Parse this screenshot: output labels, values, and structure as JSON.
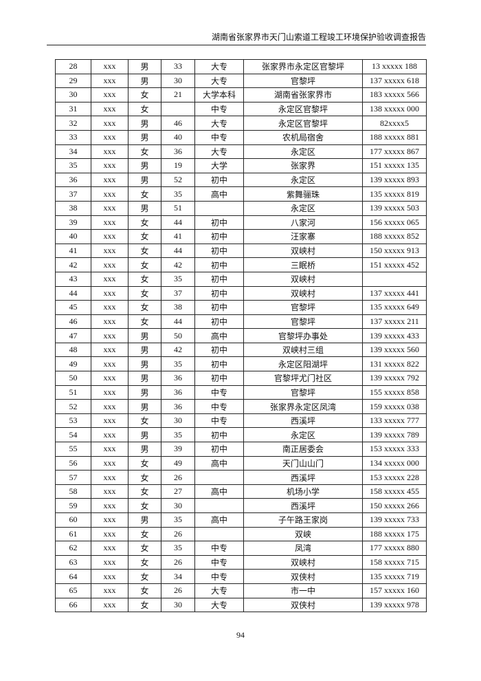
{
  "header": {
    "title": "湖南省张家界市天门山索道工程竣工环境保护验收调查报告"
  },
  "table": {
    "rows": [
      [
        "28",
        "xxx",
        "男",
        "33",
        "大专",
        "张家界市永定区官黎坪",
        "13 xxxxx 188"
      ],
      [
        "29",
        "xxx",
        "男",
        "30",
        "大专",
        "官黎坪",
        "137 xxxxx 618"
      ],
      [
        "30",
        "xxx",
        "女",
        "21",
        "大学本科",
        "湖南省张家界市",
        "183 xxxxx 566"
      ],
      [
        "31",
        "xxx",
        "女",
        null,
        "中专",
        "永定区官黎坪",
        "138 xxxxx 000"
      ],
      [
        "32",
        "xxx",
        "男",
        "46",
        "大专",
        "永定区官黎坪",
        "82xxxx5"
      ],
      [
        "33",
        "xxx",
        "男",
        "40",
        "中专",
        "农机局宿舍",
        "188 xxxxx 881"
      ],
      [
        "34",
        "xxx",
        "女",
        "36",
        "大专",
        "永定区",
        "177 xxxxx 867"
      ],
      [
        "35",
        "xxx",
        "男",
        "19",
        "大学",
        "张家界",
        "151 xxxxx 135"
      ],
      [
        "36",
        "xxx",
        "男",
        "52",
        "初中",
        "永定区",
        "139 xxxxx 893"
      ],
      [
        "37",
        "xxx",
        "女",
        "35",
        "高中",
        "紫舞骊珠",
        "135 xxxxx 819"
      ],
      [
        "38",
        "xxx",
        "男",
        "51",
        null,
        "永定区",
        "139 xxxxx 503"
      ],
      [
        "39",
        "xxx",
        "女",
        "44",
        "初中",
        "八家河",
        "156 xxxxx 065"
      ],
      [
        "40",
        "xxx",
        "女",
        "41",
        "初中",
        "汪家寨",
        "188 xxxxx 852"
      ],
      [
        "41",
        "xxx",
        "女",
        "44",
        "初中",
        "双峡村",
        "150 xxxxx 913"
      ],
      [
        "42",
        "xxx",
        "女",
        "42",
        "初中",
        "三眠桥",
        "151 xxxxx 452"
      ],
      [
        "43",
        "xxx",
        "女",
        "35",
        "初中",
        "双峡村",
        null
      ],
      [
        "44",
        "xxx",
        "女",
        "37",
        "初中",
        "双峡村",
        "137 xxxxx 441"
      ],
      [
        "45",
        "xxx",
        "女",
        "38",
        "初中",
        "官黎坪",
        "135 xxxxx 649"
      ],
      [
        "46",
        "xxx",
        "女",
        "44",
        "初中",
        "官黎坪",
        "137 xxxxx 211"
      ],
      [
        "47",
        "xxx",
        "男",
        "50",
        "高中",
        "官黎坪办事处",
        "139 xxxxx 433"
      ],
      [
        "48",
        "xxx",
        "男",
        "42",
        "初中",
        "双峡村三组",
        "139 xxxxx 560"
      ],
      [
        "49",
        "xxx",
        "男",
        "35",
        "初中",
        "永定区阳湖坪",
        "131 xxxxx 822"
      ],
      [
        "50",
        "xxx",
        "男",
        "36",
        "初中",
        "官黎坪尤门社区",
        "139 xxxxx 792"
      ],
      [
        "51",
        "xxx",
        "男",
        "36",
        "中专",
        "官黎坪",
        "155 xxxxx 858"
      ],
      [
        "52",
        "xxx",
        "男",
        "36",
        "中专",
        "张家界永定区凤湾",
        "159 xxxxx 038"
      ],
      [
        "53",
        "xxx",
        "女",
        "30",
        "中专",
        "西溪坪",
        "133 xxxxx 777"
      ],
      [
        "54",
        "xxx",
        "男",
        "35",
        "初中",
        "永定区",
        "139 xxxxx 789"
      ],
      [
        "55",
        "xxx",
        "男",
        "39",
        "初中",
        "南正居委会",
        "153 xxxxx 333"
      ],
      [
        "56",
        "xxx",
        "女",
        "49",
        "高中",
        "天门山山门",
        "134 xxxxx 000"
      ],
      [
        "57",
        "xxx",
        "女",
        "26",
        null,
        "西溪坪",
        "153 xxxxx 228"
      ],
      [
        "58",
        "xxx",
        "女",
        "27",
        "高中",
        "机场小学",
        "158 xxxxx 455"
      ],
      [
        "59",
        "xxx",
        "女",
        "30",
        null,
        "西溪坪",
        "150 xxxxx 266"
      ],
      [
        "60",
        "xxx",
        "男",
        "35",
        "高中",
        "子午路王家岗",
        "139 xxxxx 733"
      ],
      [
        "61",
        "xxx",
        "女",
        "26",
        null,
        "双峡",
        "188 xxxxx 175"
      ],
      [
        "62",
        "xxx",
        "女",
        "35",
        "中专",
        "凤湾",
        "177 xxxxx 880"
      ],
      [
        "63",
        "xxx",
        "女",
        "26",
        "中专",
        "双峡村",
        "158 xxxxx 715"
      ],
      [
        "64",
        "xxx",
        "女",
        "34",
        "中专",
        "双侠村",
        "135 xxxxx 719"
      ],
      [
        "65",
        "xxx",
        "女",
        "26",
        "大专",
        "市一中",
        "157 xxxxx 160"
      ],
      [
        "66",
        "xxx",
        "女",
        "30",
        "大专",
        "双侠村",
        "139 xxxxx 978"
      ]
    ]
  },
  "footer": {
    "page_number": "94"
  }
}
